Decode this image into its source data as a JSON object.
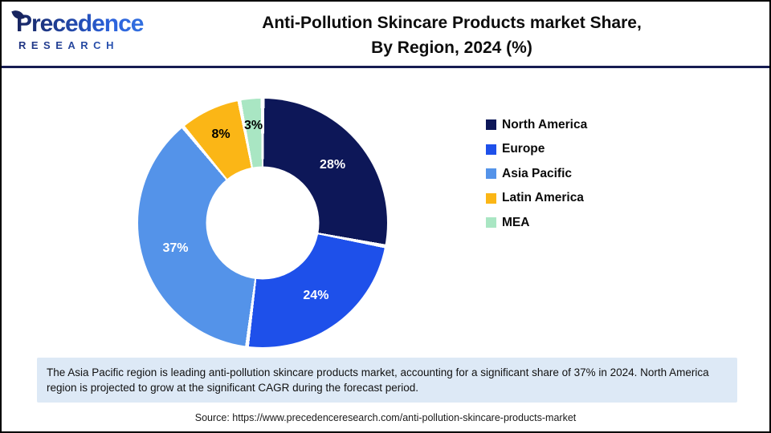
{
  "header": {
    "logo": {
      "brand": "Precedence",
      "sub": "RESEARCH"
    },
    "title_line1": "Anti-Pollution Skincare Products market Share,",
    "title_line2": "By Region, 2024 (%)"
  },
  "chart_data": {
    "type": "pie",
    "subtype": "donut",
    "title": "Anti-Pollution Skincare Products market Share, By Region, 2024 (%)",
    "unit": "%",
    "categories": [
      "North America",
      "Europe",
      "Asia Pacific",
      "Latin America",
      "MEA"
    ],
    "values": [
      28,
      24,
      37,
      8,
      3
    ],
    "colors": [
      "#0d1758",
      "#1e50ea",
      "#5493e9",
      "#fbb616",
      "#a9e6c3"
    ],
    "label_colors": [
      "#ffffff",
      "#ffffff",
      "#ffffff",
      "#000000",
      "#000000"
    ],
    "start_angle_deg": 0,
    "direction": "clockwise",
    "donut_hole_ratio": 0.45,
    "legend_position": "right",
    "data_labels": [
      "28%",
      "24%",
      "37%",
      "8%",
      "3%"
    ]
  },
  "note": {
    "text": "The Asia Pacific region is leading anti-pollution skincare products market, accounting for a significant share of 37% in 2024. North America region is projected to grow at the significant CAGR during the forecast period."
  },
  "source": {
    "text": "Source: https://www.precedenceresearch.com/anti-pollution-skincare-products-market"
  }
}
